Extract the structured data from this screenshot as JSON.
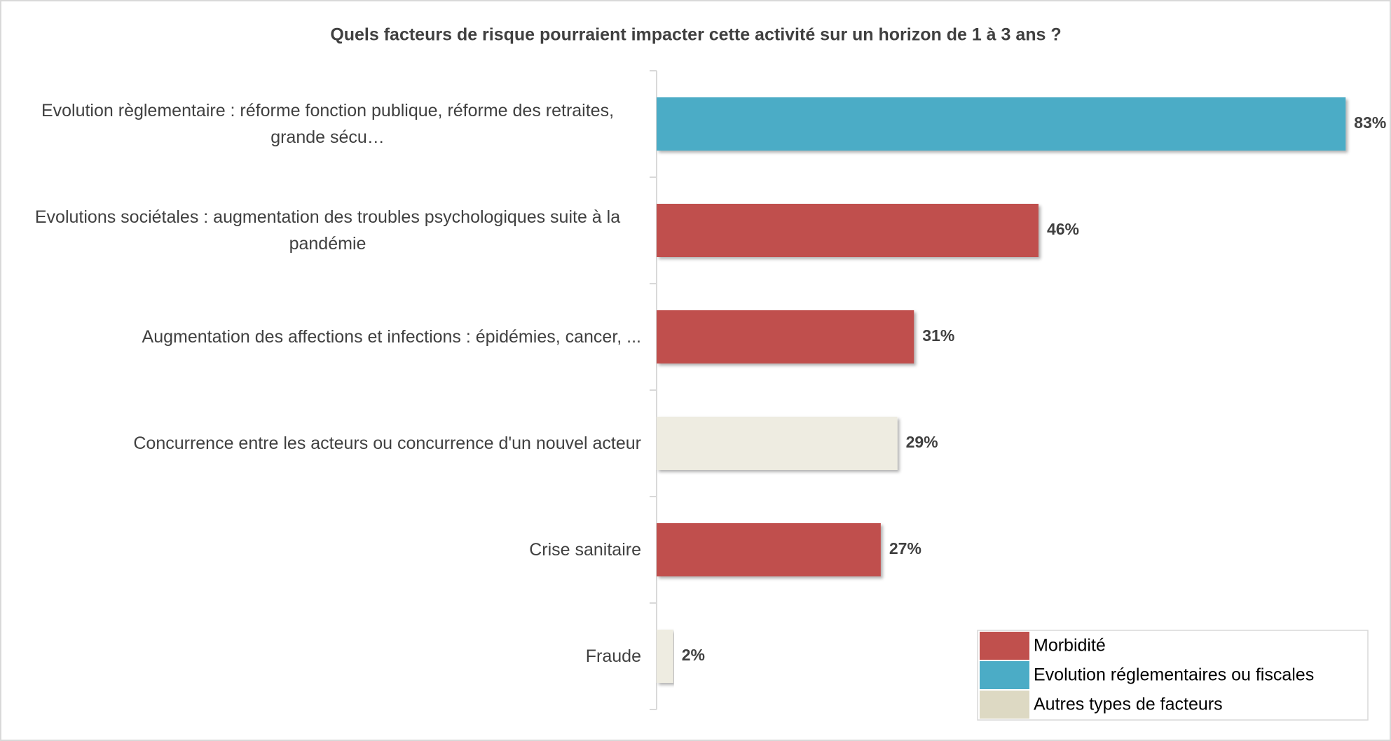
{
  "chart_data": {
    "type": "barh",
    "title": "Quels facteurs de risque pourraient impacter cette activité sur un horizon de 1 à 3 ans ?",
    "categories": [
      "Evolution règlementaire : réforme fonction publique, réforme des retraites, grande sécu…",
      "Evolutions sociétales : augmentation des troubles psychologiques suite à la pandémie",
      "Augmentation des affections et infections : épidémies, cancer, ...",
      "Concurrence entre les acteurs ou concurrence d'un nouvel acteur",
      "Crise sanitaire",
      "Fraude"
    ],
    "values": [
      83,
      46,
      31,
      29,
      27,
      2
    ],
    "value_labels": [
      "83%",
      "46%",
      "31%",
      "29%",
      "27%",
      "2%"
    ],
    "colors": [
      "#4bacc6",
      "#c0504d",
      "#c0504d",
      "#eeece1",
      "#c0504d",
      "#eeece1"
    ],
    "xlim": [
      0,
      85
    ],
    "legend_position": "lower right",
    "legend": [
      {
        "name": "Morbidité",
        "color": "#c0504d"
      },
      {
        "name": "Evolution réglementaires ou fiscales",
        "color": "#4bacc6"
      },
      {
        "name": "Autres types de facteurs",
        "color": "#ddd9c3"
      }
    ]
  }
}
